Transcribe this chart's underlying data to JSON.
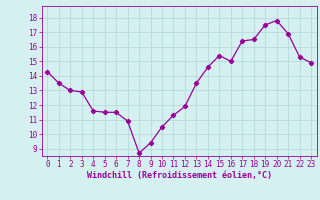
{
  "x": [
    0,
    1,
    2,
    3,
    4,
    5,
    6,
    7,
    8,
    9,
    10,
    11,
    12,
    13,
    14,
    15,
    16,
    17,
    18,
    19,
    20,
    21,
    22,
    23
  ],
  "y": [
    14.3,
    13.5,
    13.0,
    12.9,
    11.6,
    11.5,
    11.5,
    10.9,
    8.7,
    9.4,
    10.5,
    11.3,
    11.9,
    13.5,
    14.6,
    15.4,
    15.0,
    16.4,
    16.5,
    17.5,
    17.8,
    16.9,
    15.3,
    14.9
  ],
  "line_color": "#990099",
  "marker": "D",
  "marker_size": 2.2,
  "bg_color": "#d4f0f0",
  "grid_color": "#b8dada",
  "xlabel": "Windchill (Refroidissement éolien,°C)",
  "ylabel_ticks": [
    9,
    10,
    11,
    12,
    13,
    14,
    15,
    16,
    17,
    18
  ],
  "ylim": [
    8.5,
    18.8
  ],
  "xlim": [
    -0.5,
    23.5
  ],
  "tick_fontsize": 5.5,
  "xlabel_fontsize": 6.0
}
